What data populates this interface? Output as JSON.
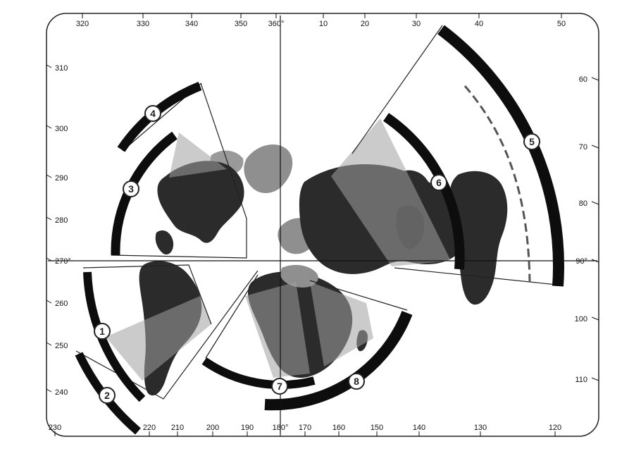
{
  "map": {
    "colors": {
      "background": "#ffffff",
      "frame": "#222222",
      "land_dark": "#2b2b2b",
      "land_grey": "#8f8f8f",
      "shade_grey": "#a9a9a9",
      "arc_black": "#0d0d0d",
      "line": "#111111"
    },
    "top_ticks": [
      "320",
      "330",
      "340",
      "350",
      "360°",
      "10",
      "20",
      "30",
      "40",
      "50"
    ],
    "bottom_ticks": [
      "230",
      "220",
      "210",
      "200",
      "190",
      "180°",
      "170",
      "160",
      "150",
      "140",
      "130",
      "120"
    ],
    "left_ticks": [
      "310",
      "300",
      "290",
      "280",
      "270°",
      "260",
      "250",
      "240"
    ],
    "right_ticks": [
      "60",
      "70",
      "80",
      "90°",
      "100",
      "110"
    ],
    "sectors": [
      {
        "number": "1"
      },
      {
        "number": "2"
      },
      {
        "number": "3"
      },
      {
        "number": "4"
      },
      {
        "number": "5"
      },
      {
        "number": "6"
      },
      {
        "number": "7"
      },
      {
        "number": "8"
      }
    ]
  }
}
